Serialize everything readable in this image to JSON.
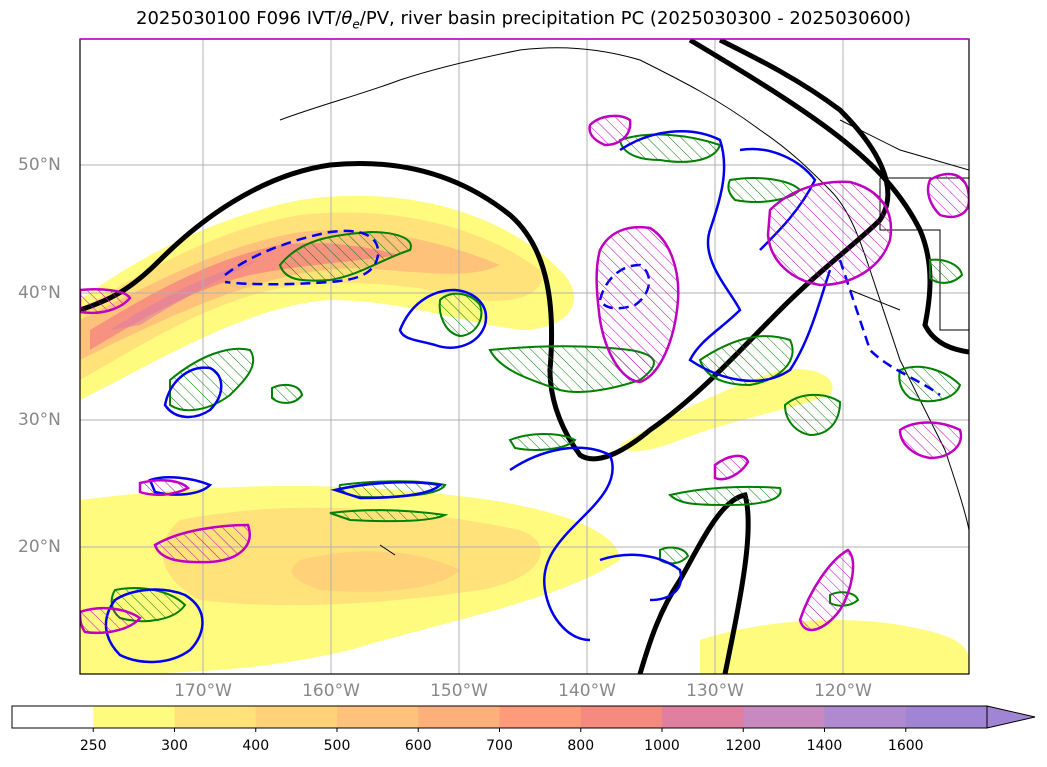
{
  "title": "2025030100 F096 IVT/θe/PV, river basin precipitation PC (2025030300 - 2025030600)",
  "map": {
    "latitude_labels": [
      "50°N",
      "40°N",
      "30°N",
      "20°N"
    ],
    "longitude_labels": [
      "170°W",
      "160°W",
      "150°W",
      "140°W",
      "130°W",
      "120°W"
    ],
    "colors": {
      "pv_contour": "#000000",
      "positive_contour": "#0000ee",
      "green_contour": "#008000",
      "magenta_contour": "#c000c0",
      "gridline": "#b0b0b0",
      "coastline": "#000000"
    }
  },
  "colorbar": {
    "ticks": [
      "250",
      "300",
      "400",
      "500",
      "600",
      "700",
      "800",
      "1000",
      "1200",
      "1400",
      "1600"
    ],
    "colors": [
      "#ffffff",
      "#fffb7f",
      "#ffe37a",
      "#ffd27a",
      "#ffc27a",
      "#ffb07a",
      "#ff9a7a",
      "#f58a80",
      "#e07fa0",
      "#c888c0",
      "#b08ad0",
      "#9f85d3"
    ],
    "extend": "max"
  }
}
